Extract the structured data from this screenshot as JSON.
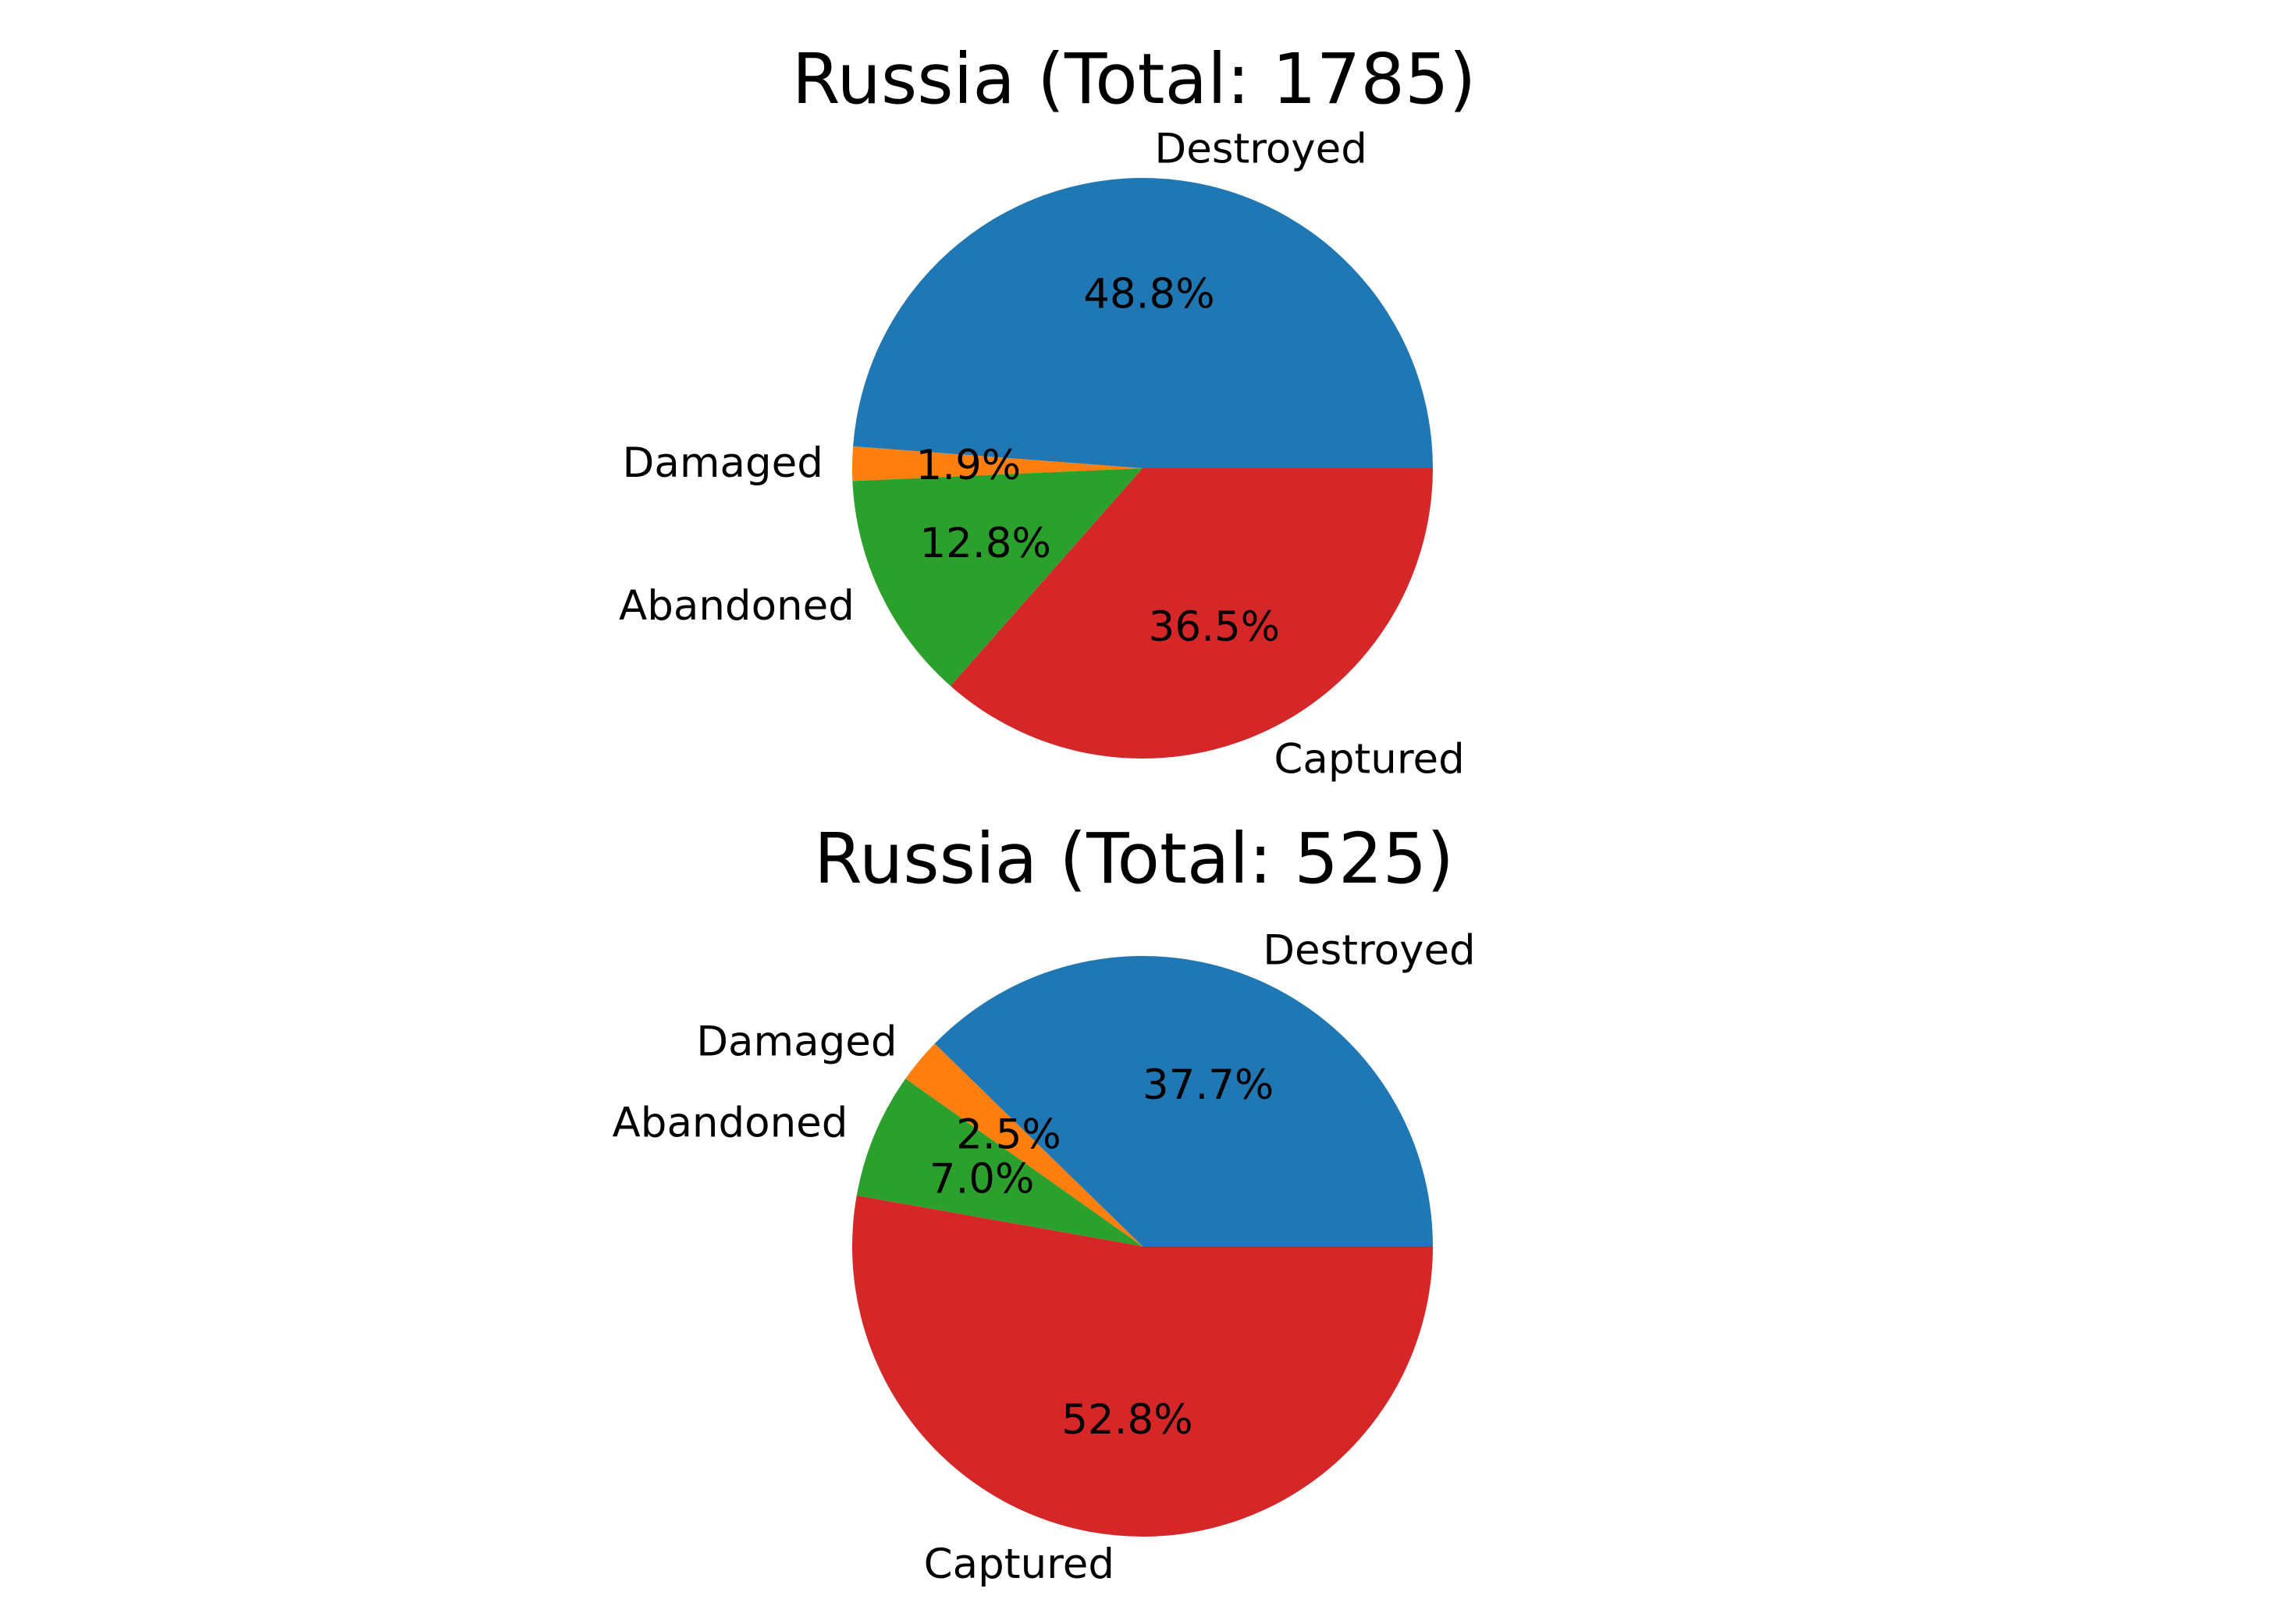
{
  "colors": {
    "Destroyed": "#1f77b4",
    "Damaged": "#ff7f0e",
    "Abandoned": "#2ca02c",
    "Captured": "#d62728"
  },
  "chart_data": [
    {
      "type": "pie",
      "title": "Russia (Total: 1785)",
      "labels": [
        "Destroyed",
        "Damaged",
        "Abandoned",
        "Captured"
      ],
      "values": [
        48.8,
        1.9,
        12.8,
        36.5
      ],
      "value_labels": [
        "48.8%",
        "1.9%",
        "12.8%",
        "36.5%"
      ],
      "start_angle": 0,
      "direction": "counterclockwise",
      "legend": "none"
    },
    {
      "type": "pie",
      "title": "Russia (Total: 525)",
      "labels": [
        "Destroyed",
        "Damaged",
        "Abandoned",
        "Captured"
      ],
      "values": [
        37.7,
        2.5,
        7.0,
        52.8
      ],
      "value_labels": [
        "37.7%",
        "2.5%",
        "7.0%",
        "52.8%"
      ],
      "start_angle": 0,
      "direction": "counterclockwise",
      "legend": "none"
    }
  ]
}
